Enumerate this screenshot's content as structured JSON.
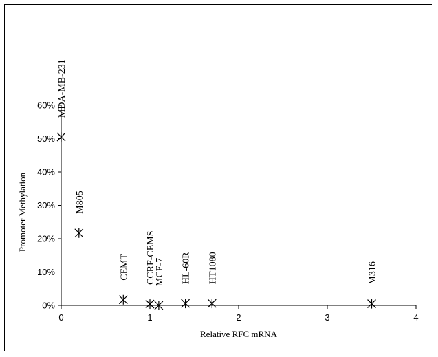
{
  "chart_data": {
    "type": "scatter",
    "xlabel": "Relative RFC mRNA",
    "ylabel": "Promoter Methylation",
    "xlim": [
      0,
      4
    ],
    "ylim": [
      0,
      0.6
    ],
    "x_ticks": [
      "0",
      "1",
      "2",
      "3",
      "4"
    ],
    "y_ticks": [
      "0%",
      "10%",
      "20%",
      "30%",
      "40%",
      "50%",
      "60%"
    ],
    "marker": "asterisk",
    "grid": false,
    "legend": "none",
    "points": [
      {
        "label": "MDA-MB-231",
        "x": 0.0,
        "y": 0.505
      },
      {
        "label": "M805",
        "x": 0.2,
        "y": 0.217
      },
      {
        "label": "CEMT",
        "x": 0.7,
        "y": 0.017
      },
      {
        "label": "CCRF-CEMS",
        "x": 1.0,
        "y": 0.004
      },
      {
        "label": "MCF-7",
        "x": 1.1,
        "y": 0.0
      },
      {
        "label": "HL-60R",
        "x": 1.4,
        "y": 0.006
      },
      {
        "label": "HT1080",
        "x": 1.7,
        "y": 0.006
      },
      {
        "label": "M316",
        "x": 3.5,
        "y": 0.005
      }
    ]
  }
}
